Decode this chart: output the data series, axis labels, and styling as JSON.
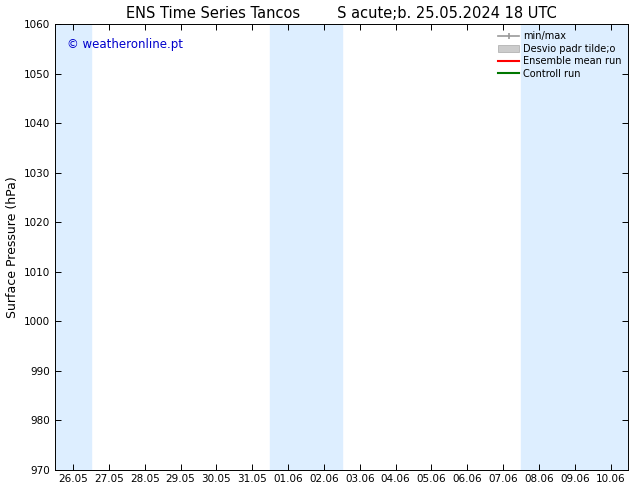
{
  "title": "ENS Time Series Tancos        S acute;b. 25.05.2024 18 UTC",
  "ylabel": "Surface Pressure (hPa)",
  "ylim": [
    970,
    1060
  ],
  "yticks": [
    970,
    980,
    990,
    1000,
    1010,
    1020,
    1030,
    1040,
    1050,
    1060
  ],
  "xtick_labels": [
    "26.05",
    "27.05",
    "28.05",
    "29.05",
    "30.05",
    "31.05",
    "01.06",
    "02.06",
    "03.06",
    "04.06",
    "05.06",
    "06.06",
    "07.06",
    "08.06",
    "09.06",
    "10.06"
  ],
  "n_ticks": 16,
  "shaded_bands": [
    {
      "xmin": 0,
      "xmax": 1
    },
    {
      "xmin": 6,
      "xmax": 8
    },
    {
      "xmin": 13,
      "xmax": 16
    }
  ],
  "band_color": "#ddeeff",
  "watermark": "© weatheronline.pt",
  "watermark_color": "#0000cc",
  "legend_labels": [
    "min/max",
    "Desvio padr tilde;o",
    "Ensemble mean run",
    "Controll run"
  ],
  "legend_line_color1": "#999999",
  "legend_patch_color": "#cccccc",
  "legend_line_color3": "#ff0000",
  "legend_line_color4": "#007700",
  "background_color": "#ffffff",
  "tick_label_fontsize": 7.5,
  "axis_label_fontsize": 9,
  "title_fontsize": 10.5
}
